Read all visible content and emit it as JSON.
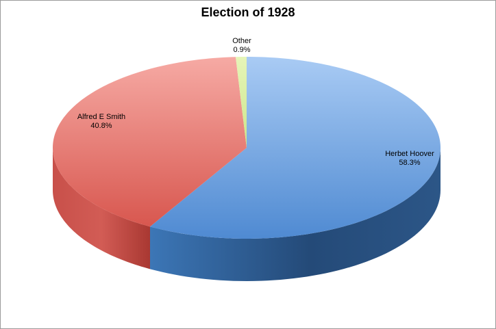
{
  "chart_data": {
    "type": "pie",
    "title": "Election of 1928",
    "categories": [
      "Herbet Hoover",
      "Alfred E Smith",
      "Other"
    ],
    "values": [
      58.3,
      40.8,
      0.9
    ],
    "value_labels": [
      "58.3%",
      "40.8%",
      "0.9%"
    ],
    "colors": [
      "#5b93d6",
      "#e8706a",
      "#d6eb9a"
    ],
    "style": "3d-pie",
    "legend": "none"
  }
}
